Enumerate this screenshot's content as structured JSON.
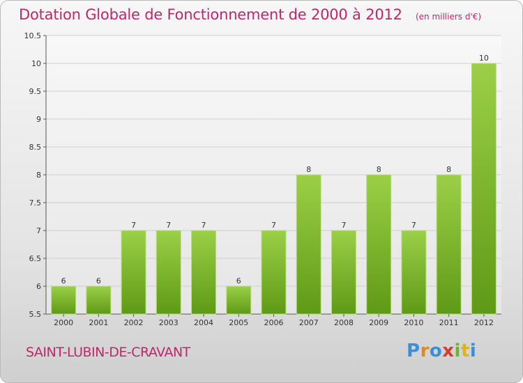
{
  "header": {
    "title": "Dotation Globale de Fonctionnement de 2000 à 2012",
    "unit": "(en milliers d'€)"
  },
  "footer": {
    "commune": "SAINT-LUBIN-DE-CRAVANT",
    "logo_text": "Proxiti"
  },
  "colors": {
    "title": "#c0266a",
    "bar_top": "#9ccf48",
    "bar_bottom": "#5e9a16",
    "axis": "#444444",
    "grid": "#cccccc"
  },
  "chart_data": {
    "type": "bar",
    "title": "Dotation Globale de Fonctionnement de 2000 à 2012",
    "subtitle": "(en milliers d'€)",
    "xlabel": "",
    "ylabel": "",
    "categories": [
      "2000",
      "2001",
      "2002",
      "2003",
      "2004",
      "2005",
      "2006",
      "2007",
      "2008",
      "2009",
      "2010",
      "2011",
      "2012"
    ],
    "values": [
      6,
      6,
      7,
      7,
      7,
      6,
      7,
      8,
      7,
      8,
      7,
      8,
      10
    ],
    "data_labels": [
      "6",
      "6",
      "7",
      "7",
      "7",
      "6",
      "7",
      "8",
      "7",
      "8",
      "7",
      "8",
      "10"
    ],
    "ylim": [
      5.5,
      10.5
    ],
    "yticks": [
      5.5,
      6,
      6.5,
      7,
      7.5,
      8,
      8.5,
      9,
      9.5,
      10,
      10.5
    ],
    "ytick_labels": [
      "5.5",
      "6",
      "6.5",
      "7",
      "7.5",
      "8",
      "8.5",
      "9",
      "9.5",
      "10",
      "10.5"
    ],
    "grid": true,
    "legend": "none"
  }
}
